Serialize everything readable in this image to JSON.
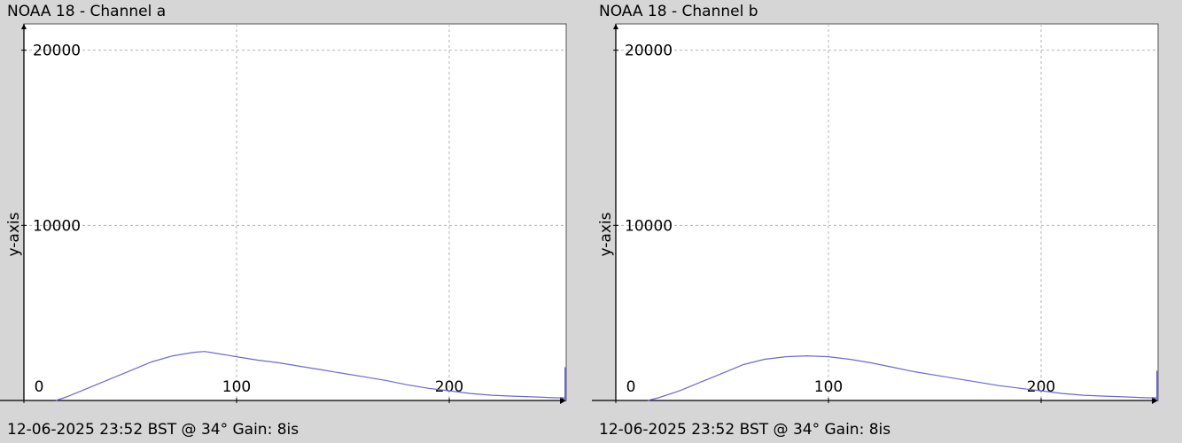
{
  "panels": [
    {
      "title": "NOAA 18 - Channel a",
      "footer": "12-06-2025 23:52 BST @ 34° Gain: 8is"
    },
    {
      "title": "NOAA 18 - Channel b",
      "footer": "12-06-2025 23:52 BST @ 34° Gain: 8is"
    }
  ],
  "colors": {
    "background": "#d6d6d6",
    "plot_background": "#ffffff",
    "line": "#6a6ad0",
    "grid": "#b4b4b4"
  },
  "chart_data": [
    {
      "type": "line",
      "title": "NOAA 18 - Channel a",
      "xlabel": "",
      "ylabel": "y-axis",
      "xlim": [
        0,
        255
      ],
      "ylim": [
        0,
        21500
      ],
      "x_ticks": [
        0,
        100,
        200
      ],
      "x_tick_labels": [
        "0",
        "100",
        "200"
      ],
      "y_ticks": [
        20000,
        10000
      ],
      "y_tick_labels": [
        "20000",
        "10000"
      ],
      "grid": true,
      "series": [
        {
          "x": [
            15,
            20,
            30,
            40,
            50,
            60,
            70,
            80,
            85,
            90,
            100,
            110,
            120,
            130,
            140,
            150,
            160,
            170,
            180,
            190,
            200,
            210,
            220,
            230,
            240,
            250,
            255
          ],
          "y": [
            0,
            200,
            700,
            1200,
            1700,
            2200,
            2550,
            2750,
            2800,
            2700,
            2500,
            2300,
            2150,
            1950,
            1750,
            1550,
            1350,
            1150,
            900,
            700,
            550,
            400,
            300,
            250,
            200,
            150,
            150
          ]
        }
      ],
      "spike": {
        "x": 255,
        "y": 1900
      }
    },
    {
      "type": "line",
      "title": "NOAA 18 - Channel b",
      "xlabel": "",
      "ylabel": "y-axis",
      "xlim": [
        0,
        255
      ],
      "ylim": [
        0,
        21500
      ],
      "x_ticks": [
        0,
        100,
        200
      ],
      "x_tick_labels": [
        "0",
        "100",
        "200"
      ],
      "y_ticks": [
        20000,
        10000
      ],
      "y_tick_labels": [
        "20000",
        "10000"
      ],
      "grid": true,
      "series": [
        {
          "x": [
            15,
            20,
            30,
            40,
            50,
            60,
            70,
            80,
            90,
            100,
            110,
            120,
            130,
            140,
            150,
            160,
            170,
            180,
            190,
            200,
            210,
            220,
            230,
            240,
            250,
            255
          ],
          "y": [
            0,
            150,
            550,
            1050,
            1550,
            2050,
            2350,
            2500,
            2550,
            2500,
            2350,
            2150,
            1900,
            1650,
            1450,
            1250,
            1050,
            850,
            700,
            550,
            400,
            300,
            250,
            200,
            150,
            150
          ]
        }
      ],
      "spike": {
        "x": 255,
        "y": 1700
      }
    }
  ]
}
